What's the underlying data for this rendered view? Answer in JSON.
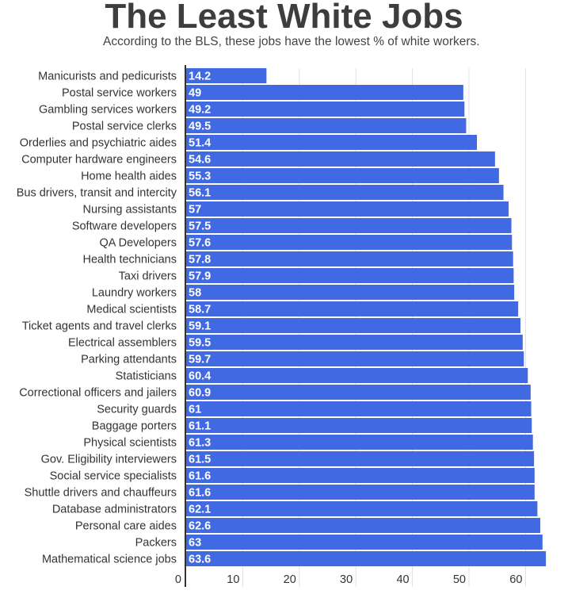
{
  "chart_data": {
    "type": "bar",
    "orientation": "horizontal",
    "title": "The Least White Jobs",
    "subtitle": "According to the BLS, these jobs have the lowest % of white workers.",
    "xlabel": "",
    "ylabel": "",
    "xlim": [
      0,
      65
    ],
    "xticks": [
      "0",
      "10",
      "20",
      "30",
      "40",
      "50",
      "60"
    ],
    "grid": true,
    "bar_color": "#4169e1",
    "categories": [
      "Manicurists and pedicurists",
      "Postal service workers",
      "Gambling services workers",
      "Postal service clerks",
      "Orderlies and psychiatric aides",
      "Computer hardware engineers",
      "Home health aides",
      "Bus drivers, transit and intercity",
      "Nursing assistants",
      "Software developers",
      "QA Developers",
      "Health technicians",
      "Taxi drivers",
      "Laundry workers",
      "Medical scientists",
      "Ticket agents and travel clerks",
      "Electrical assemblers",
      "Parking attendants",
      "Statisticians",
      "Correctional officers and jailers",
      "Security guards",
      "Baggage porters",
      "Physical scientists",
      "Gov. Eligibility interviewers",
      "Social service specialists",
      "Shuttle drivers and chauffeurs",
      "Database administrators",
      "Personal care aides",
      "Packers",
      "Mathematical science jobs"
    ],
    "values": [
      14.2,
      49,
      49.2,
      49.5,
      51.4,
      54.6,
      55.3,
      56.1,
      57,
      57.5,
      57.6,
      57.8,
      57.9,
      58,
      58.7,
      59.1,
      59.5,
      59.7,
      60.4,
      60.9,
      61,
      61.1,
      61.3,
      61.5,
      61.6,
      61.6,
      62.1,
      62.6,
      63,
      63.6
    ],
    "value_labels": [
      "14.2",
      "49",
      "49.2",
      "49.5",
      "51.4",
      "54.6",
      "55.3",
      "56.1",
      "57",
      "57.5",
      "57.6",
      "57.8",
      "57.9",
      "58",
      "58.7",
      "59.1",
      "59.5",
      "59.7",
      "60.4",
      "60.9",
      "61",
      "61.1",
      "61.3",
      "61.5",
      "61.6",
      "61.6",
      "62.1",
      "62.6",
      "63",
      "63.6"
    ]
  }
}
